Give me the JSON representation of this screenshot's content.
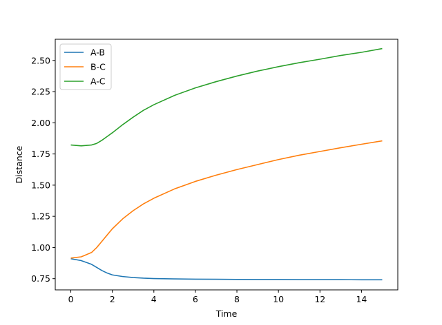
{
  "chart_data": {
    "type": "line",
    "title": "",
    "xlabel": "Time",
    "ylabel": "Distance",
    "xlim": [
      -0.75,
      15.75
    ],
    "ylim": [
      0.66,
      2.67
    ],
    "xticks": [
      0,
      2,
      4,
      6,
      8,
      10,
      12,
      14
    ],
    "xtick_labels": [
      "0",
      "2",
      "4",
      "6",
      "8",
      "10",
      "12",
      "14"
    ],
    "yticks": [
      0.75,
      1.0,
      1.25,
      1.5,
      1.75,
      2.0,
      2.25,
      2.5
    ],
    "ytick_labels": [
      "0.75",
      "1.00",
      "1.25",
      "1.50",
      "1.75",
      "2.00",
      "2.25",
      "2.50"
    ],
    "grid": false,
    "legend_position": "top-left",
    "x": [
      0,
      0.5,
      1,
      1.25,
      1.5,
      1.75,
      2,
      2.5,
      3,
      3.5,
      4,
      5,
      6,
      7,
      8,
      9,
      10,
      11,
      12,
      13,
      14,
      15
    ],
    "series": [
      {
        "name": "A-B",
        "color": "#1f77b4",
        "values": [
          0.91,
          0.895,
          0.865,
          0.84,
          0.815,
          0.795,
          0.78,
          0.767,
          0.759,
          0.754,
          0.751,
          0.748,
          0.746,
          0.745,
          0.744,
          0.743,
          0.743,
          0.742,
          0.742,
          0.742,
          0.741,
          0.741
        ]
      },
      {
        "name": "B-C",
        "color": "#ff7f0e",
        "values": [
          0.915,
          0.925,
          0.96,
          1.0,
          1.05,
          1.1,
          1.15,
          1.23,
          1.295,
          1.35,
          1.395,
          1.47,
          1.53,
          1.58,
          1.625,
          1.665,
          1.705,
          1.74,
          1.77,
          1.8,
          1.828,
          1.855
        ]
      },
      {
        "name": "A-C",
        "color": "#2ca02c",
        "values": [
          1.822,
          1.815,
          1.822,
          1.835,
          1.86,
          1.89,
          1.92,
          1.985,
          2.045,
          2.1,
          2.145,
          2.22,
          2.28,
          2.33,
          2.375,
          2.415,
          2.45,
          2.482,
          2.51,
          2.54,
          2.565,
          2.595
        ]
      }
    ]
  }
}
